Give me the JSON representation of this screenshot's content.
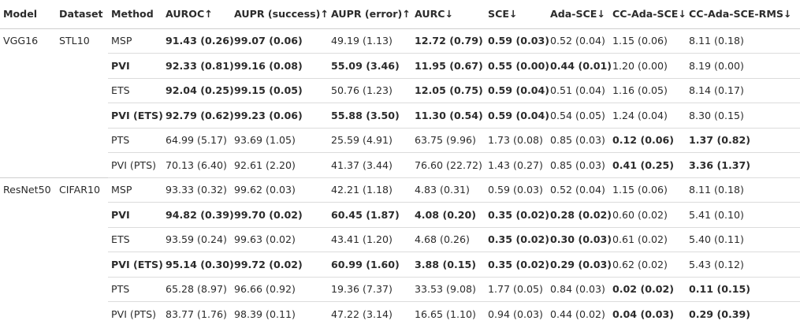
{
  "headers": [
    "Model",
    "Dataset",
    "Method",
    "AUROC↑",
    "AUPR (success)↑",
    "AUPR (error)↑",
    "AURC↓",
    "SCE↓",
    "Ada-SCE↓",
    "CC-Ada-SCE↓",
    "CC-Ada-SCE-RMS↓"
  ],
  "groups": [
    {
      "model": "VGG16",
      "dataset": "STL10",
      "rows": [
        {
          "cells": [
            "MSP",
            "91.43 (0.26)",
            "99.07 (0.06)",
            "49.19 (1.13)",
            "12.72 (0.79)",
            "0.59 (0.03)",
            "0.52 (0.04)",
            "1.15 (0.06)",
            "8.11 (0.18)"
          ],
          "bold": [
            1,
            2,
            4,
            5
          ]
        },
        {
          "cells": [
            "PVI",
            "92.33 (0.81)",
            "99.16 (0.08)",
            "55.09 (3.46)",
            "11.95 (0.67)",
            "0.55 (0.00)",
            "0.44 (0.01)",
            "1.20 (0.00)",
            "8.19 (0.00)"
          ],
          "bold": [
            0,
            1,
            2,
            3,
            4,
            5,
            6
          ]
        },
        {
          "cells": [
            "ETS",
            "92.04 (0.25)",
            "99.15 (0.05)",
            "50.76 (1.23)",
            "12.05 (0.75)",
            "0.59 (0.04)",
            "0.51 (0.04)",
            "1.16 (0.05)",
            "8.14 (0.17)"
          ],
          "bold": [
            1,
            2,
            4,
            5
          ]
        },
        {
          "cells": [
            "PVI (ETS)",
            "92.79 (0.62)",
            "99.23 (0.06)",
            "55.88 (3.50)",
            "11.30 (0.54)",
            "0.59 (0.04)",
            "0.54 (0.05)",
            "1.24 (0.04)",
            "8.30 (0.15)"
          ],
          "bold": [
            0,
            1,
            2,
            3,
            4,
            5
          ]
        },
        {
          "cells": [
            "PTS",
            "64.99 (5.17)",
            "93.69 (1.05)",
            "25.59 (4.91)",
            "63.75 (9.96)",
            "1.73 (0.08)",
            "0.85 (0.03)",
            "0.12 (0.06)",
            "1.37 (0.82)"
          ],
          "bold": [
            7,
            8
          ]
        },
        {
          "cells": [
            "PVI (PTS)",
            "70.13 (6.40)",
            "92.61 (2.20)",
            "41.37 (3.44)",
            "76.60 (22.72)",
            "1.43 (0.27)",
            "0.85 (0.03)",
            "0.41 (0.25)",
            "3.36 (1.37)"
          ],
          "bold": [
            7,
            8
          ]
        }
      ]
    },
    {
      "model": "ResNet50",
      "dataset": "CIFAR10",
      "rows": [
        {
          "cells": [
            "MSP",
            "93.33 (0.32)",
            "99.62 (0.03)",
            "42.21 (1.18)",
            "4.83 (0.31)",
            "0.59 (0.03)",
            "0.52 (0.04)",
            "1.15 (0.06)",
            "8.11 (0.18)"
          ],
          "bold": []
        },
        {
          "cells": [
            "PVI",
            "94.82 (0.39)",
            "99.70 (0.02)",
            "60.45 (1.87)",
            "4.08 (0.20)",
            "0.35 (0.02)",
            "0.28 (0.02)",
            "0.60 (0.02)",
            "5.41 (0.10)"
          ],
          "bold": [
            0,
            1,
            2,
            3,
            4,
            5,
            6
          ]
        },
        {
          "cells": [
            "ETS",
            "93.59 (0.24)",
            "99.63 (0.02)",
            "43.41 (1.20)",
            "4.68 (0.26)",
            "0.35 (0.02)",
            "0.30 (0.03)",
            "0.61 (0.02)",
            "5.40 (0.11)"
          ],
          "bold": [
            5,
            6
          ]
        },
        {
          "cells": [
            "PVI (ETS)",
            "95.14 (0.30)",
            "99.72 (0.02)",
            "60.99 (1.60)",
            "3.88 (0.15)",
            "0.35 (0.02)",
            "0.29 (0.03)",
            "0.62 (0.02)",
            "5.43 (0.12)"
          ],
          "bold": [
            0,
            1,
            2,
            3,
            4,
            5,
            6
          ]
        },
        {
          "cells": [
            "PTS",
            "65.28 (8.97)",
            "96.66 (0.92)",
            "19.36 (7.37)",
            "33.53 (9.08)",
            "1.77 (0.05)",
            "0.84 (0.03)",
            "0.02 (0.02)",
            "0.11 (0.15)"
          ],
          "bold": [
            7,
            8
          ]
        },
        {
          "cells": [
            "PVI (PTS)",
            "83.77 (1.76)",
            "98.39 (0.11)",
            "47.22 (3.14)",
            "16.65 (1.10)",
            "0.94 (0.03)",
            "0.44 (0.02)",
            "0.04 (0.03)",
            "0.29 (0.39)"
          ],
          "bold": [
            7,
            8
          ]
        }
      ]
    }
  ]
}
